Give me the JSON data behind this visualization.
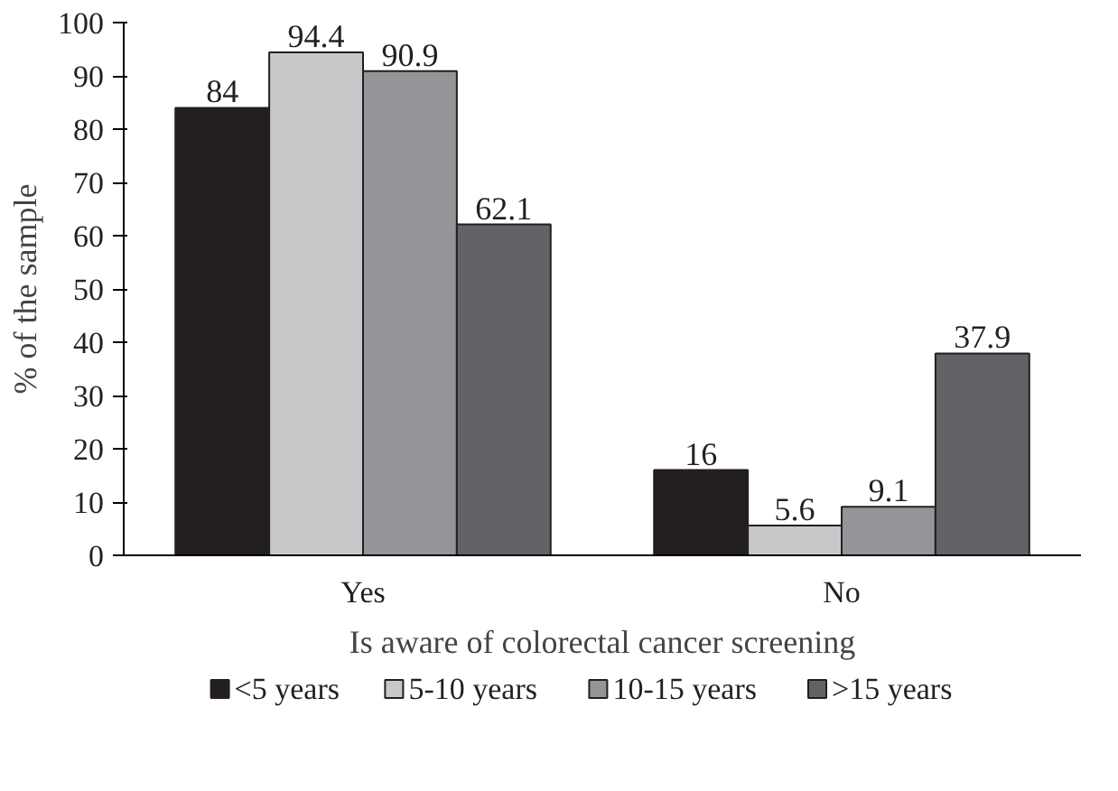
{
  "chart_data": {
    "type": "bar",
    "xlabel": "Is aware of colorectal cancer screening",
    "ylabel": "% of the sample",
    "categories": [
      "Yes",
      "No"
    ],
    "series": [
      {
        "name": "<5 years",
        "color": "#231f20",
        "values": [
          84,
          16
        ]
      },
      {
        "name": "5-10 years",
        "color": "#c8c8ca",
        "values": [
          94.4,
          5.6
        ]
      },
      {
        "name": "10-15 years",
        "color": "#939598",
        "values": [
          90.9,
          9.1
        ]
      },
      {
        "name": ">15 years",
        "color": "#626366",
        "values": [
          62.1,
          37.9
        ]
      }
    ],
    "ylim": [
      0,
      100
    ],
    "yticks": [
      0,
      10,
      20,
      30,
      40,
      50,
      60,
      70,
      80,
      90,
      100
    ],
    "data_labels": true,
    "grid": false,
    "legend": "bottom"
  }
}
